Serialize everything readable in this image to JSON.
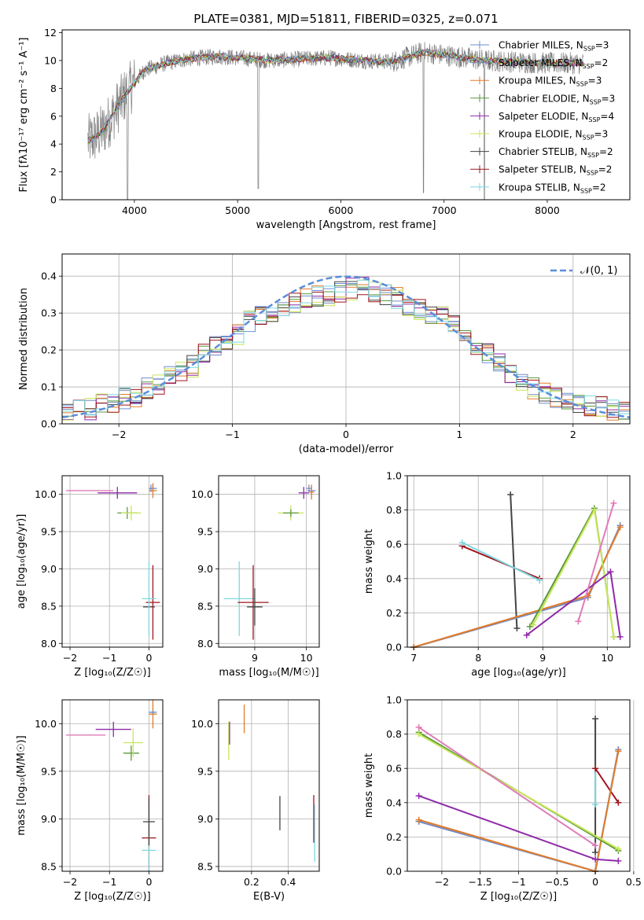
{
  "figure_title": "PLATE=0381, MJD=51811, FIBERID=0325, z=0.071",
  "models": [
    {
      "name": "Chabrier MILES",
      "label": "Chabrier MILES, N",
      "nssp": "=3",
      "color": "#6b8fd6"
    },
    {
      "name": "Salpeter MILES",
      "label": "Salpeter MILES, N",
      "nssp": "=2",
      "color": "#7a8cc0"
    },
    {
      "name": "Kroupa MILES",
      "label": "Kroupa MILES, N",
      "nssp": "=3",
      "color": "#e07b2a"
    },
    {
      "name": "Chabrier ELODIE",
      "label": "Chabrier ELODIE, N",
      "nssp": "=3",
      "color": "#5a9a3a"
    },
    {
      "name": "Salpeter ELODIE",
      "label": "Salpeter ELODIE, N",
      "nssp": "=4",
      "color": "#8e2ba8"
    },
    {
      "name": "Kroupa ELODIE",
      "label": "Kroupa ELODIE, N",
      "nssp": "=3",
      "color": "#c8e65a"
    },
    {
      "name": "Chabrier STELIB",
      "label": "Chabrier STELIB, N",
      "nssp": "=2",
      "color": "#444444"
    },
    {
      "name": "Salpeter STELIB",
      "label": "Salpeter STELIB, N",
      "nssp": "=2",
      "color": "#a0141e"
    },
    {
      "name": "Kroupa STELIB",
      "label": "Kroupa STELIB, N",
      "nssp": "=2",
      "color": "#7ed8e0"
    }
  ],
  "nssp_sub": "SSP",
  "chart_data": [
    {
      "id": "spectrum",
      "type": "line",
      "title": "PLATE=0381, MJD=51811, FIBERID=0325, z=0.071",
      "xlabel": "wavelength [Angstrom, rest frame]",
      "ylabel": "Flux [fλ10⁻¹⁷ erg cm⁻² s⁻¹ A⁻¹]",
      "xlim": [
        3300,
        8800
      ],
      "ylim": [
        0,
        12.2
      ],
      "xticks": [
        4000,
        5000,
        6000,
        7000,
        8000
      ],
      "yticks": [
        0,
        2,
        4,
        6,
        8,
        10,
        12
      ],
      "grid": false,
      "legend": "top-right",
      "data_range": [
        3550,
        8350
      ],
      "continuum": {
        "x": [
          3550,
          3600,
          3700,
          3800,
          3900,
          4000,
          4100,
          4300,
          4500,
          4800,
          5000,
          5300,
          5600,
          5900,
          6200,
          6500,
          6800,
          7100,
          7400,
          7700,
          8000,
          8350
        ],
        "y": [
          4.2,
          4.4,
          5.0,
          6.2,
          7.4,
          8.4,
          9.3,
          9.8,
          10.1,
          10.3,
          10.2,
          10.0,
          10.1,
          10.2,
          10.0,
          9.9,
          10.6,
          10.3,
          10.0,
          9.9,
          9.8,
          9.8
        ]
      },
      "absorption_lines": [
        {
          "x": 3934,
          "y": 0
        },
        {
          "x": 5200,
          "y": 0.8
        },
        {
          "x": 6800,
          "y": 0.5
        },
        {
          "x": 7390,
          "y": 0
        }
      ]
    },
    {
      "id": "residuals",
      "type": "histogram",
      "xlabel": "(data-model)/error",
      "ylabel": "Normed distribution",
      "xlim": [
        -2.5,
        2.5
      ],
      "ylim": [
        0,
        0.46
      ],
      "xticks": [
        -2,
        -1,
        0,
        1,
        2
      ],
      "yticks": [
        0.0,
        0.1,
        0.2,
        0.3,
        0.4
      ],
      "grid": true,
      "legend": "top-right",
      "normal_label": "𝒩(0, 1)",
      "normal_color": "#5b8dd9",
      "bins": {
        "start": -2.5,
        "width": 0.1,
        "count": 50
      },
      "envelope": [
        0.03,
        0.035,
        0.04,
        0.05,
        0.055,
        0.06,
        0.07,
        0.075,
        0.085,
        0.095,
        0.11,
        0.125,
        0.14,
        0.155,
        0.17,
        0.19,
        0.21,
        0.225,
        0.24,
        0.26,
        0.28,
        0.29,
        0.3,
        0.31,
        0.325,
        0.335,
        0.34,
        0.345,
        0.35,
        0.355,
        0.36,
        0.365,
        0.37,
        0.36,
        0.35,
        0.34,
        0.33,
        0.32,
        0.31,
        0.3,
        0.29,
        0.27,
        0.25,
        0.23,
        0.21,
        0.19,
        0.17,
        0.15,
        0.13,
        0.11,
        0.095,
        0.085,
        0.07,
        0.065,
        0.06,
        0.055,
        0.05,
        0.045,
        0.04,
        0.035,
        0.03,
        0.03
      ]
    },
    {
      "id": "age_vs_Z",
      "type": "scatter",
      "xlabel": "Z [log₁₀(Z/Z☉)]",
      "ylabel": "age  [log₁₀(age/yr)]",
      "xlim": [
        -2.2,
        0.35
      ],
      "ylim": [
        7.95,
        10.25
      ],
      "xticks": [
        -2,
        -1,
        0
      ],
      "yticks": [
        8.0,
        8.5,
        9.0,
        9.5,
        10.0
      ],
      "grid": true,
      "points": [
        {
          "m": 6,
          "x": 0.0,
          "y": 8.49,
          "xe": 0.15,
          "ye": 0
        },
        {
          "m": 7,
          "x": 0.1,
          "y": 8.55,
          "xe": 0.18,
          "ye": 0.5
        },
        {
          "m": 8,
          "x": 0.0,
          "y": 8.6,
          "xe": 0.18,
          "ye": 0.5
        },
        {
          "m": 4,
          "x": -0.8,
          "y": 10.02,
          "xe": 0.5,
          "ye": 0.08
        },
        {
          "m": 3,
          "x": -0.55,
          "y": 9.75,
          "xe": 0.25,
          "ye": 0.08
        },
        {
          "m": 5,
          "x": -0.45,
          "y": 9.75,
          "xe": 0.25,
          "ye": 0.1
        },
        {
          "m": 0,
          "x": 0.1,
          "y": 10.08,
          "xe": 0.1,
          "ye": 0.05
        },
        {
          "m": 2,
          "x": 0.1,
          "y": 10.05,
          "xe": 0.1,
          "ye": 0.1
        },
        {
          "m": 1,
          "x": 0.05,
          "y": 10.08,
          "xe": 0.05,
          "ye": 0.05
        }
      ],
      "extra": [
        {
          "m": 4,
          "x": -1.5,
          "y": 10.05,
          "xe": 0.6,
          "ye": 0
        }
      ]
    },
    {
      "id": "age_vs_mass",
      "type": "scatter",
      "xlabel": "mass [log₁₀(M/M☉)]",
      "ylabel": "",
      "xlim": [
        8.3,
        10.25
      ],
      "ylim": [
        7.95,
        10.25
      ],
      "xticks": [
        9,
        10
      ],
      "yticks": [
        8.0,
        8.5,
        9.0,
        9.5,
        10.0
      ],
      "grid": true,
      "points": [
        {
          "m": 8,
          "x": 8.7,
          "y": 8.6,
          "xe": 0.3,
          "ye": 0.5
        },
        {
          "m": 7,
          "x": 8.97,
          "y": 8.55,
          "xe": 0.3,
          "ye": 0.5
        },
        {
          "m": 6,
          "x": 9.0,
          "y": 8.49,
          "xe": 0.15,
          "ye": 0.25
        },
        {
          "m": 5,
          "x": 9.7,
          "y": 9.75,
          "xe": 0.25,
          "ye": 0.1
        },
        {
          "m": 3,
          "x": 9.7,
          "y": 9.75,
          "xe": 0.15,
          "ye": 0.05
        },
        {
          "m": 4,
          "x": 9.95,
          "y": 10.02,
          "xe": 0.1,
          "ye": 0.08
        },
        {
          "m": 0,
          "x": 10.1,
          "y": 10.05,
          "xe": 0.08,
          "ye": 0.05
        },
        {
          "m": 2,
          "x": 10.1,
          "y": 10.03,
          "xe": 0.05,
          "ye": 0.1
        },
        {
          "m": 1,
          "x": 10.05,
          "y": 10.08,
          "xe": 0.05,
          "ye": 0.05
        }
      ]
    },
    {
      "id": "weight_vs_age",
      "type": "line",
      "xlabel": "age  [log₁₀(age/yr)]",
      "ylabel": "mass weight",
      "xlim": [
        6.9,
        10.35
      ],
      "ylim": [
        0,
        1
      ],
      "xticks": [
        7,
        8,
        9,
        10
      ],
      "yticks": [
        0.0,
        0.2,
        0.4,
        0.6,
        0.8,
        1.0
      ],
      "grid": true,
      "series": [
        {
          "m": 6,
          "x": [
            8.5,
            8.6
          ],
          "y": [
            0.89,
            0.11
          ]
        },
        {
          "m": 7,
          "x": [
            7.75,
            8.95
          ],
          "y": [
            0.59,
            0.4
          ]
        },
        {
          "m": 8,
          "x": [
            7.75,
            8.95
          ],
          "y": [
            0.61,
            0.39
          ]
        },
        {
          "m": 0,
          "x": [
            7.0,
            9.7,
            10.2
          ],
          "y": [
            0.0,
            0.29,
            0.71
          ]
        },
        {
          "m": 1,
          "x": [
            7.0,
            9.7,
            10.2
          ],
          "y": [
            0.0,
            0.29,
            0.71
          ]
        },
        {
          "m": 2,
          "x": [
            7.0,
            9.7,
            10.2
          ],
          "y": [
            0.0,
            0.3,
            0.7
          ]
        },
        {
          "m": 3,
          "x": [
            8.8,
            9.8,
            10.1
          ],
          "y": [
            0.12,
            0.81,
            0.06
          ]
        },
        {
          "m": 5,
          "x": [
            8.85,
            9.8,
            10.1
          ],
          "y": [
            0.13,
            0.8,
            0.06
          ]
        },
        {
          "m": 4,
          "x": [
            8.75,
            10.05,
            10.2
          ],
          "y": [
            0.07,
            0.44,
            0.06
          ]
        },
        {
          "m": 4,
          "x": [
            9.55,
            10.1
          ],
          "y": [
            0.15,
            0.84
          ],
          "alt_color": "#e07bb8"
        }
      ]
    },
    {
      "id": "mass_vs_Z",
      "type": "scatter",
      "xlabel": "Z [log₁₀(Z/Z☉)]",
      "ylabel": "mass [log₁₀(M/M☉)]",
      "xlim": [
        -2.2,
        0.35
      ],
      "ylim": [
        8.45,
        10.25
      ],
      "xticks": [
        -2,
        -1,
        0
      ],
      "yticks": [
        8.5,
        9.0,
        9.5,
        10.0
      ],
      "grid": true,
      "points": [
        {
          "m": 7,
          "x": 0.0,
          "y": 8.8,
          "xe": 0.18,
          "ye": 0.45
        },
        {
          "m": 8,
          "x": 0.0,
          "y": 8.67,
          "xe": 0.18,
          "ye": 0.45
        },
        {
          "m": 6,
          "x": 0.0,
          "y": 8.97,
          "xe": 0.15,
          "ye": 0.25
        },
        {
          "m": 4,
          "x": -0.9,
          "y": 9.94,
          "xe": 0.45,
          "ye": 0.08
        },
        {
          "m": 3,
          "x": -0.45,
          "y": 9.69,
          "xe": 0.2,
          "ye": 0.08
        },
        {
          "m": 5,
          "x": -0.4,
          "y": 9.8,
          "xe": 0.25,
          "ye": 0.15
        },
        {
          "m": 0,
          "x": 0.1,
          "y": 10.12,
          "xe": 0.1,
          "ye": 0.02
        },
        {
          "m": 2,
          "x": 0.1,
          "y": 10.1,
          "xe": 0.1,
          "ye": 0.15
        },
        {
          "m": 1,
          "x": 0.1,
          "y": 10.12,
          "xe": 0.08,
          "ye": 0.02
        }
      ],
      "extra": [
        {
          "m": 4,
          "x": -1.6,
          "y": 9.88,
          "xe": 0.5,
          "ye": 0
        }
      ]
    },
    {
      "id": "mass_vs_EBV",
      "type": "scatter",
      "xlabel": "E(B-V)",
      "ylabel": "",
      "xlim": [
        0.02,
        0.57
      ],
      "ylim": [
        8.45,
        10.25
      ],
      "xticks": [
        0.2,
        0.4
      ],
      "yticks": [
        8.5,
        9.0,
        9.5,
        10.0
      ],
      "grid": true,
      "points": [
        {
          "m": 5,
          "x": 0.075,
          "y": 9.82,
          "xe": 0,
          "ye": 0.2
        },
        {
          "m": 4,
          "x": 0.08,
          "y": 9.9,
          "xe": 0,
          "ye": 0.12
        },
        {
          "m": 2,
          "x": 0.16,
          "y": 10.05,
          "xe": 0,
          "ye": 0.15
        },
        {
          "m": 6,
          "x": 0.355,
          "y": 9.06,
          "xe": 0,
          "ye": 0.18
        },
        {
          "m": 7,
          "x": 0.54,
          "y": 9.0,
          "xe": 0,
          "ye": 0.25
        },
        {
          "m": 8,
          "x": 0.545,
          "y": 8.85,
          "xe": 0,
          "ye": 0.3
        }
      ]
    },
    {
      "id": "weight_vs_Z",
      "type": "line",
      "xlabel": "Z [log₁₀(Z/Z☉)]",
      "ylabel": "mass weight",
      "xlim": [
        -2.45,
        0.45
      ],
      "ylim": [
        0,
        1
      ],
      "xticks": [
        -2.0,
        -1.5,
        -1.0,
        -0.5,
        0.0,
        0.5
      ],
      "yticks": [
        0.0,
        0.2,
        0.4,
        0.6,
        0.8,
        1.0
      ],
      "grid": true,
      "series": [
        {
          "m": 6,
          "x": [
            0.0,
            0.0
          ],
          "y": [
            0.89,
            0.11
          ]
        },
        {
          "m": 8,
          "x": [
            0.0,
            0.0
          ],
          "y": [
            0.6,
            0.39
          ]
        },
        {
          "m": 7,
          "x": [
            0.0,
            0.3
          ],
          "y": [
            0.6,
            0.4
          ]
        },
        {
          "m": 0,
          "x": [
            -2.3,
            0.0,
            0.3
          ],
          "y": [
            0.29,
            0.0,
            0.71
          ]
        },
        {
          "m": 1,
          "x": [
            -2.3,
            0.0,
            0.3
          ],
          "y": [
            0.29,
            0.0,
            0.71
          ]
        },
        {
          "m": 2,
          "x": [
            -2.3,
            0.0,
            0.3
          ],
          "y": [
            0.3,
            0.0,
            0.7
          ]
        },
        {
          "m": 3,
          "x": [
            -2.3,
            0.3
          ],
          "y": [
            0.81,
            0.12
          ]
        },
        {
          "m": 5,
          "x": [
            -2.3,
            0.3
          ],
          "y": [
            0.8,
            0.13
          ]
        },
        {
          "m": 4,
          "x": [
            -2.3,
            0.0,
            0.3
          ],
          "y": [
            0.44,
            0.07,
            0.06
          ]
        },
        {
          "m": 4,
          "x": [
            -2.3,
            0.0
          ],
          "y": [
            0.84,
            0.15
          ],
          "alt_color": "#e07bb8"
        }
      ]
    }
  ]
}
